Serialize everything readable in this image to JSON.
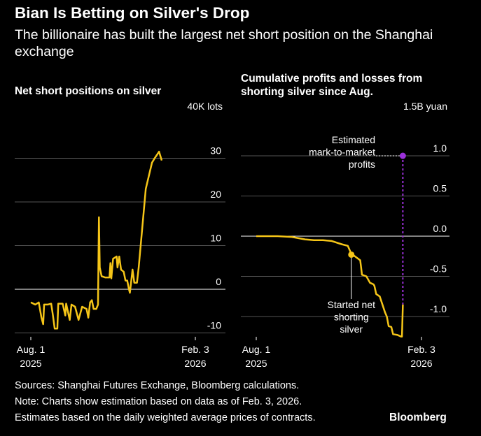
{
  "header": {
    "title": "Bian Is Betting on Silver's Drop",
    "subtitle": "The billionaire has built the largest net short position on the Shanghai exchange"
  },
  "colors": {
    "background": "#000000",
    "line": "#F5C518",
    "annotation": "#9B30D9",
    "grid": "#555555",
    "zero_line": "#FFFFFF"
  },
  "chart_data": [
    {
      "type": "line",
      "title": "Net short positions on silver",
      "unit_label": "40K lots",
      "x_ticks": [
        {
          "line1": "Aug. 1",
          "line2": "2025",
          "x": "2025-08-01"
        },
        {
          "line1": "Feb. 3",
          "line2": "2026",
          "x": "2026-02-03"
        }
      ],
      "y_ticks": [
        30,
        20,
        10,
        0,
        -10
      ],
      "ylim": [
        -12,
        40
      ],
      "series": [
        {
          "points": [
            [
              "2025-08-01",
              -3
            ],
            [
              "2025-08-06",
              -3.5
            ],
            [
              "2025-08-10",
              -3
            ],
            [
              "2025-08-13",
              -6.5
            ],
            [
              "2025-08-15",
              -8
            ],
            [
              "2025-08-16",
              -3.5
            ],
            [
              "2025-08-20",
              -3.5
            ],
            [
              "2025-08-24",
              -3.3
            ],
            [
              "2025-08-26",
              -6
            ],
            [
              "2025-08-28",
              -9
            ],
            [
              "2025-08-31",
              -9
            ],
            [
              "2025-09-01",
              -3.3
            ],
            [
              "2025-09-06",
              -3.3
            ],
            [
              "2025-09-09",
              -6
            ],
            [
              "2025-09-10",
              -3.3
            ],
            [
              "2025-09-14",
              -7
            ],
            [
              "2025-09-16",
              -3.5
            ],
            [
              "2025-09-20",
              -4
            ],
            [
              "2025-09-24",
              -7
            ],
            [
              "2025-09-28",
              -4
            ],
            [
              "2025-10-03",
              -4.5
            ],
            [
              "2025-10-05",
              -6.5
            ],
            [
              "2025-10-07",
              -3
            ],
            [
              "2025-10-09",
              -2.5
            ],
            [
              "2025-10-11",
              -4.5
            ],
            [
              "2025-10-14",
              -4.5
            ],
            [
              "2025-10-16",
              -3.5
            ],
            [
              "2025-10-17",
              16.5
            ],
            [
              "2025-10-18",
              5
            ],
            [
              "2025-10-20",
              3
            ],
            [
              "2025-10-24",
              2.7
            ],
            [
              "2025-10-29",
              2.7
            ],
            [
              "2025-10-30",
              6
            ],
            [
              "2025-10-31",
              2.5
            ],
            [
              "2025-11-02",
              7
            ],
            [
              "2025-11-06",
              7.5
            ],
            [
              "2025-11-07",
              5
            ],
            [
              "2025-11-09",
              7.5
            ],
            [
              "2025-11-11",
              4.5
            ],
            [
              "2025-11-14",
              4
            ],
            [
              "2025-11-16",
              2
            ],
            [
              "2025-11-18",
              2
            ],
            [
              "2025-11-20",
              0
            ],
            [
              "2025-11-21",
              -0.8
            ],
            [
              "2025-11-22",
              1
            ],
            [
              "2025-11-24",
              4.5
            ],
            [
              "2025-11-26",
              1.5
            ],
            [
              "2025-11-29",
              1.5
            ],
            [
              "2025-12-01",
              5
            ],
            [
              "2025-12-09",
              23
            ],
            [
              "2025-12-16",
              29
            ],
            [
              "2025-12-19",
              30
            ],
            [
              "2025-12-24",
              31.5
            ],
            [
              "2025-12-27",
              29.5
            ]
          ]
        }
      ]
    },
    {
      "type": "line",
      "title": "Cumulative profits and losses from shorting silver since Aug.",
      "unit_label": "1.5B yuan",
      "x_ticks": [
        {
          "line1": "Aug. 1",
          "line2": "2025",
          "x": "2025-08-01"
        },
        {
          "line1": "Feb. 3",
          "line2": "2026",
          "x": "2026-02-03"
        }
      ],
      "y_ticks": [
        "1.0",
        "0.5",
        "0.0",
        "-0.5",
        "-1.0"
      ],
      "ylim": [
        -1.45,
        1.5
      ],
      "series": [
        {
          "points": [
            [
              "2025-08-01",
              0
            ],
            [
              "2025-08-25",
              0
            ],
            [
              "2025-09-10",
              -0.01
            ],
            [
              "2025-09-25",
              -0.04
            ],
            [
              "2025-10-05",
              -0.05
            ],
            [
              "2025-10-15",
              -0.05
            ],
            [
              "2025-10-25",
              -0.06
            ],
            [
              "2025-11-05",
              -0.1
            ],
            [
              "2025-11-12",
              -0.12
            ],
            [
              "2025-11-16",
              -0.22
            ],
            [
              "2025-11-20",
              -0.25
            ],
            [
              "2025-11-26",
              -0.3
            ],
            [
              "2025-11-28",
              -0.48
            ],
            [
              "2025-12-03",
              -0.5
            ],
            [
              "2025-12-07",
              -0.58
            ],
            [
              "2025-12-11",
              -0.6
            ],
            [
              "2025-12-12",
              -0.62
            ],
            [
              "2025-12-14",
              -0.72
            ],
            [
              "2025-12-18",
              -0.75
            ],
            [
              "2025-12-21",
              -0.85
            ],
            [
              "2025-12-24",
              -0.95
            ],
            [
              "2025-12-26",
              -1.0
            ],
            [
              "2025-12-28",
              -1.12
            ],
            [
              "2025-12-31",
              -1.13
            ],
            [
              "2026-01-02",
              -1.22
            ],
            [
              "2026-01-07",
              -1.23
            ],
            [
              "2026-01-11",
              -1.25
            ],
            [
              "2026-01-12",
              -1.25
            ],
            [
              "2026-01-13",
              -0.85
            ]
          ]
        }
      ],
      "annotations": [
        {
          "text_lines": [
            "Estimated",
            "mark-to-market",
            "profits"
          ],
          "value": 1.0,
          "x": "2026-01-13"
        },
        {
          "text_lines": [
            "Started net",
            "shorting",
            "silver"
          ],
          "value": -0.23,
          "x": "2025-11-16"
        }
      ]
    }
  ],
  "footer": {
    "sources": "Sources: Shanghai Futures Exchange, Bloomberg calculations.",
    "note": "Note: Charts show estimation based on data as of Feb. 3, 2026.",
    "estimates": "Estimates based on the daily weighted average prices of contracts.",
    "brand": "Bloomberg"
  }
}
